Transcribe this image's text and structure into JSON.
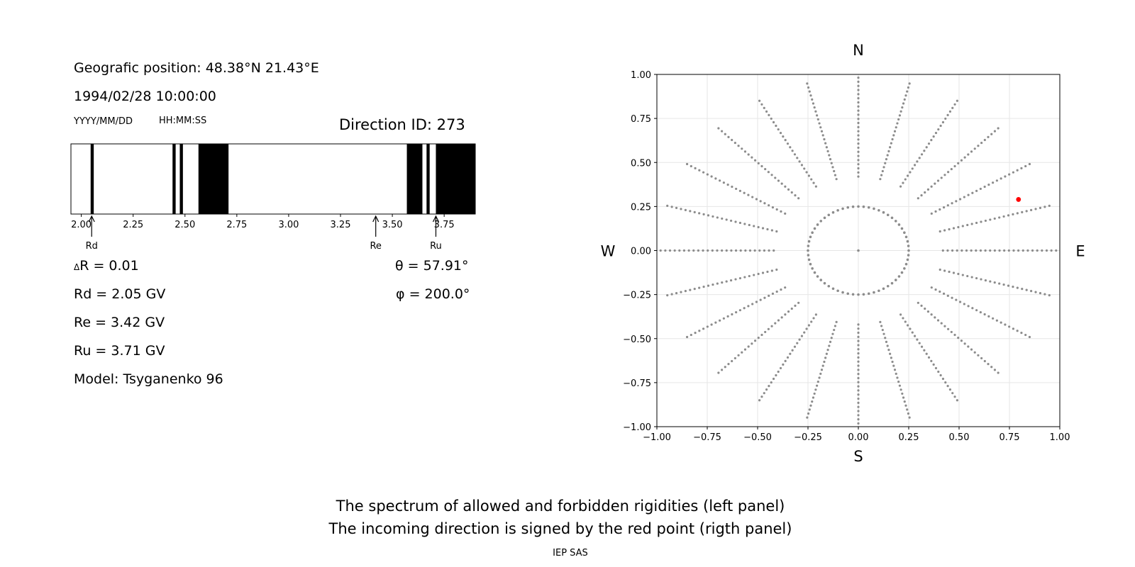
{
  "left_panel": {
    "position": "Geografic position: 48.38°N 21.43°E",
    "datetime": "1994/02/28 10:00:00",
    "date_hint": "YYYY/MM/DD",
    "time_hint": "HH:MM:SS",
    "direction_id": "Direction ID: 273",
    "delta_r": "R = 0.01",
    "delta_symbol": "Δ",
    "rd": "Rd = 2.05 GV",
    "re": "Re = 3.42 GV",
    "ru": "Ru = 3.71 GV",
    "model": "Model: Tsyganenko 96",
    "theta": "θ = 57.91°",
    "phi": "φ = 200.0°"
  },
  "footer": {
    "line1": "The spectrum of allowed and forbidden rigidities (left panel)",
    "line2": "The incoming direction is signed by the red point (rigth panel)",
    "credit": "IEP SAS"
  },
  "colors": {
    "forbidden": "#000000",
    "allowed": "#ffffff",
    "grid_points": "#8c8c8c",
    "direction_point": "#ff0000"
  },
  "chart_data": [
    {
      "type": "bar",
      "name": "rigidity-spectrum",
      "xlim": [
        1.95,
        3.9
      ],
      "xticks": [
        "2.00",
        "2.25",
        "2.50",
        "2.75",
        "3.00",
        "3.25",
        "3.50",
        "3.75"
      ],
      "forbidden_bands": [
        [
          2.045,
          2.06
        ],
        [
          2.44,
          2.455
        ],
        [
          2.475,
          2.49
        ],
        [
          2.565,
          2.71
        ],
        [
          3.57,
          3.645
        ],
        [
          3.665,
          3.68
        ],
        [
          3.71,
          3.9
        ]
      ],
      "markers": [
        {
          "label": "Rd",
          "value": 2.05
        },
        {
          "label": "Re",
          "value": 3.42
        },
        {
          "label": "Ru",
          "value": 3.71
        }
      ]
    },
    {
      "type": "scatter",
      "name": "incoming-direction-map",
      "xlim": [
        -1.0,
        1.0
      ],
      "ylim": [
        -1.0,
        1.0
      ],
      "xticks": [
        "−1.00",
        "−0.75",
        "−0.50",
        "−0.25",
        "0.00",
        "0.25",
        "0.50",
        "0.75",
        "1.00"
      ],
      "yticks": [
        "1.00",
        "0.75",
        "0.50",
        "0.25",
        "0.00",
        "−0.25",
        "−0.50",
        "−0.75",
        "−1.00"
      ],
      "grid": true,
      "compass": {
        "north": "N",
        "south": "S",
        "west": "W",
        "east": "E"
      },
      "rings": [
        0.25,
        0.42,
        0.57,
        0.7,
        0.81,
        0.9,
        0.97,
        1.0
      ],
      "azimuth_step_deg": 15,
      "highlight": {
        "x": 0.795,
        "y": 0.29
      }
    }
  ]
}
